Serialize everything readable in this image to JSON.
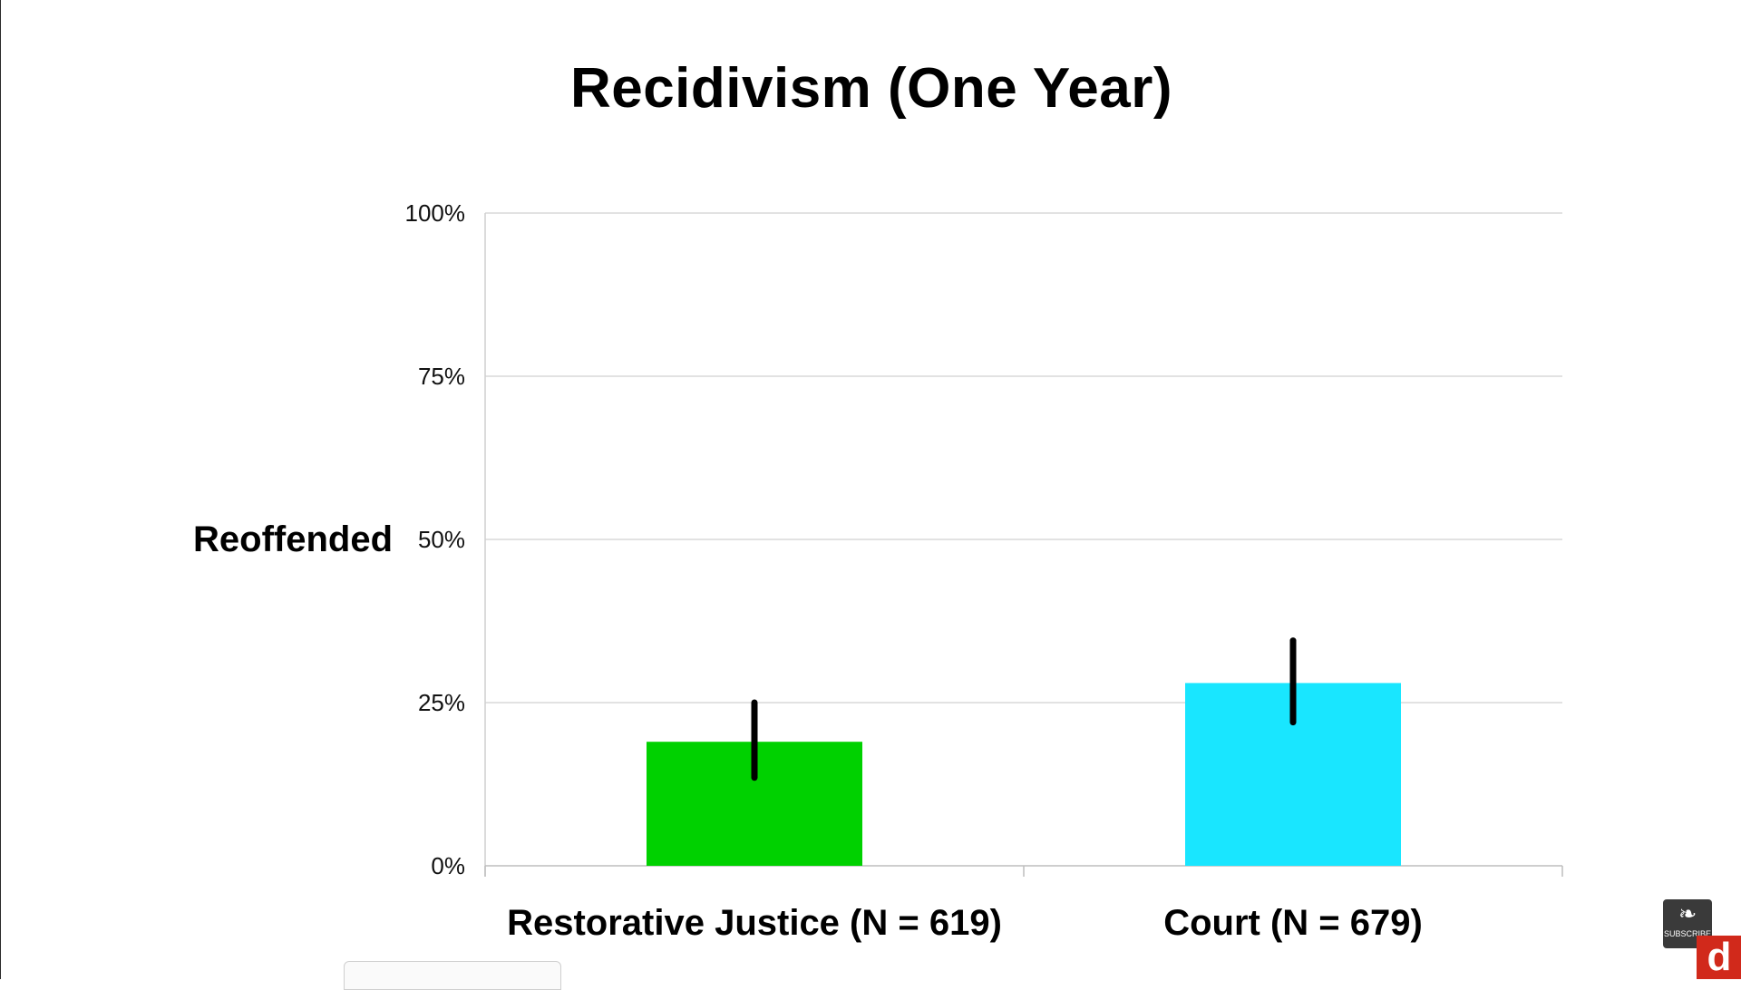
{
  "chart_data": {
    "type": "bar",
    "title": "Recidivism (One Year)",
    "ylabel": "Reoffended",
    "xlabel": "",
    "categories": [
      "Restorative Justice (N = 619)",
      "Court (N = 679)"
    ],
    "values": [
      19,
      28
    ],
    "error_bars": [
      [
        13.5,
        25
      ],
      [
        22,
        34.5
      ]
    ],
    "colors": [
      "#00d100",
      "#19e6ff"
    ],
    "ylim": [
      0,
      100
    ],
    "yticks": [
      0,
      25,
      50,
      75,
      100
    ],
    "ytick_labels": [
      "0%",
      "25%",
      "50%",
      "75%",
      "100%"
    ],
    "grid": true,
    "legend": "none"
  },
  "overlay": {
    "badge_icon": "flame-icon",
    "badge_text": "SUBSCRIBE",
    "corner_logo": "d"
  }
}
